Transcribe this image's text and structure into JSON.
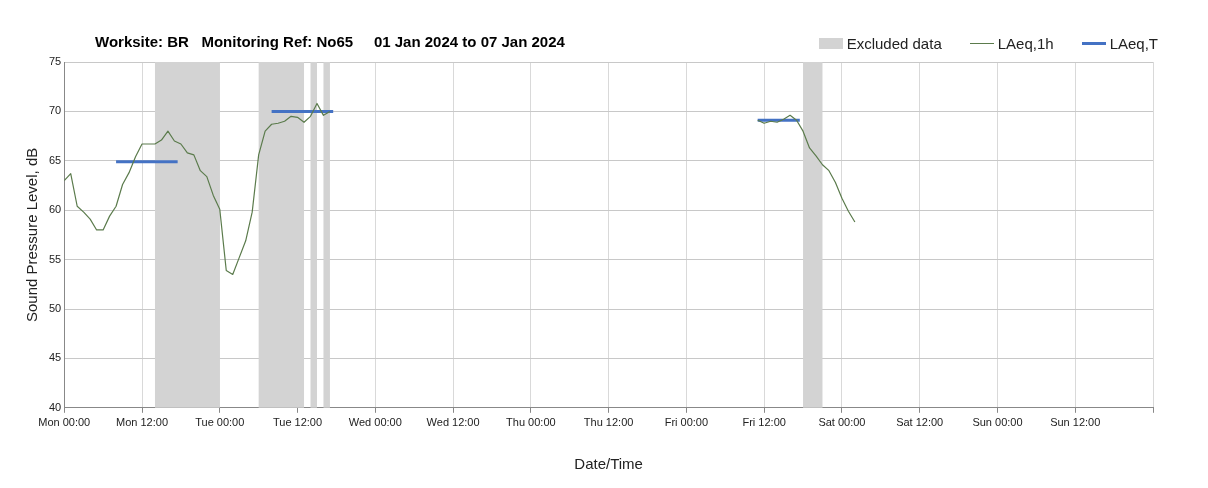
{
  "chart_data": {
    "type": "line",
    "title": "Worksite: BR   Monitoring Ref: No65     01 Jan 2024 to 07 Jan 2024",
    "xlabel": "Date/Time",
    "ylabel": "Sound Pressure Level, dB",
    "xlim": [
      "2024-01-01T00:00",
      "2024-01-08T00:00"
    ],
    "xticks": [
      {
        "value": "2024-01-01T00:00",
        "label": "Mon 00:00"
      },
      {
        "value": "2024-01-01T12:00",
        "label": "Mon 12:00"
      },
      {
        "value": "2024-01-02T00:00",
        "label": "Tue 00:00"
      },
      {
        "value": "2024-01-02T12:00",
        "label": "Tue 12:00"
      },
      {
        "value": "2024-01-03T00:00",
        "label": "Wed 00:00"
      },
      {
        "value": "2024-01-03T12:00",
        "label": "Wed 12:00"
      },
      {
        "value": "2024-01-04T00:00",
        "label": "Thu 00:00"
      },
      {
        "value": "2024-01-04T12:00",
        "label": "Thu 12:00"
      },
      {
        "value": "2024-01-05T00:00",
        "label": "Fri 00:00"
      },
      {
        "value": "2024-01-05T12:00",
        "label": "Fri 12:00"
      },
      {
        "value": "2024-01-06T00:00",
        "label": "Sat 00:00"
      },
      {
        "value": "2024-01-06T12:00",
        "label": "Sat 12:00"
      },
      {
        "value": "2024-01-07T00:00",
        "label": "Sun 00:00"
      },
      {
        "value": "2024-01-07T12:00",
        "label": "Sun 12:00"
      },
      {
        "value": "2024-01-08T00:00",
        "label": null
      }
    ],
    "ylim": [
      40,
      75
    ],
    "yticks": [
      40,
      45,
      50,
      55,
      60,
      65,
      70,
      75
    ],
    "grid": true,
    "legend": "top right",
    "marker": "none",
    "line_style": "solid",
    "bands": [
      {
        "axis": "x",
        "from": "2024-01-01T14:00",
        "to": "2024-01-02T00:00",
        "label": "Excluded data",
        "color": "#d3d3d3"
      },
      {
        "axis": "x",
        "from": "2024-01-02T06:00",
        "to": "2024-01-02T13:00",
        "color": "#d3d3d3"
      },
      {
        "axis": "x",
        "from": "2024-01-02T14:00",
        "to": "2024-01-02T15:00",
        "color": "#d3d3d3"
      },
      {
        "axis": "x",
        "from": "2024-01-02T16:00",
        "to": "2024-01-02T17:00",
        "color": "#d3d3d3"
      },
      {
        "axis": "x",
        "from": "2024-01-05T18:00",
        "to": "2024-01-05T21:00",
        "color": "#d3d3d3"
      }
    ],
    "series": [
      {
        "name": "LAeq,1h",
        "color": "#5b7b4c",
        "x": [
          "2024-01-01T00:00",
          "2024-01-01T01:00",
          "2024-01-01T02:00",
          "2024-01-01T03:00",
          "2024-01-01T04:00",
          "2024-01-01T05:00",
          "2024-01-01T06:00",
          "2024-01-01T07:00",
          "2024-01-01T08:00",
          "2024-01-01T09:00",
          "2024-01-01T10:00",
          "2024-01-01T11:00",
          "2024-01-01T12:00",
          "2024-01-01T13:00",
          "2024-01-01T14:00",
          "2024-01-01T15:00",
          "2024-01-01T16:00",
          "2024-01-01T17:00",
          "2024-01-01T18:00",
          "2024-01-01T19:00",
          "2024-01-01T20:00",
          "2024-01-01T21:00",
          "2024-01-01T22:00",
          "2024-01-01T23:00",
          "2024-01-02T00:00",
          "2024-01-02T01:00",
          "2024-01-02T02:00",
          "2024-01-02T03:00",
          "2024-01-02T04:00",
          "2024-01-02T05:00",
          "2024-01-02T06:00",
          "2024-01-02T07:00",
          "2024-01-02T08:00",
          "2024-01-02T09:00",
          "2024-01-02T10:00",
          "2024-01-02T11:00",
          "2024-01-02T12:00",
          "2024-01-02T13:00",
          "2024-01-02T14:00",
          "2024-01-02T15:00",
          "2024-01-02T16:00",
          "2024-01-02T17:00",
          "2024-01-02T17:30",
          "2024-01-05T11:00",
          "2024-01-05T12:00",
          "2024-01-05T13:00",
          "2024-01-05T14:00",
          "2024-01-05T15:00",
          "2024-01-05T16:00",
          "2024-01-05T17:00",
          "2024-01-05T18:00",
          "2024-01-05T19:00",
          "2024-01-05T20:00",
          "2024-01-05T21:00",
          "2024-01-05T22:00",
          "2024-01-05T23:00",
          "2024-01-06T00:00",
          "2024-01-06T01:00",
          "2024-01-06T02:00"
        ],
        "values": [
          63.0,
          63.7,
          60.4,
          59.8,
          59.1,
          58.0,
          58.0,
          59.4,
          60.4,
          62.6,
          63.8,
          65.4,
          66.7,
          66.7,
          66.7,
          67.1,
          68.0,
          67.0,
          66.7,
          65.8,
          65.6,
          64.0,
          63.4,
          61.5,
          60.1,
          53.9,
          53.5,
          55.2,
          56.9,
          59.8,
          65.6,
          68.0,
          68.7,
          68.8,
          69.0,
          69.5,
          69.4,
          68.9,
          69.5,
          70.8,
          69.6,
          70.0,
          null,
          69.1,
          68.8,
          69.0,
          68.9,
          69.2,
          69.6,
          69.1,
          68.0,
          66.3,
          65.5,
          64.6,
          64.0,
          62.8,
          61.2,
          59.9,
          58.8
        ]
      },
      {
        "name": "LAeq,T",
        "color": "#4472c4",
        "x": [
          "2024-01-01T08:00",
          "2024-01-01T17:30"
        ],
        "values": [
          64.9,
          64.9
        ]
      },
      {
        "color": "#4472c4",
        "x": [
          "2024-01-02T08:00",
          "2024-01-02T17:30"
        ],
        "values": [
          70,
          70
        ]
      },
      {
        "color": "#4472c4",
        "x": [
          "2024-01-05T11:00",
          "2024-01-05T17:30"
        ],
        "values": [
          69.1,
          69.1
        ]
      }
    ]
  }
}
